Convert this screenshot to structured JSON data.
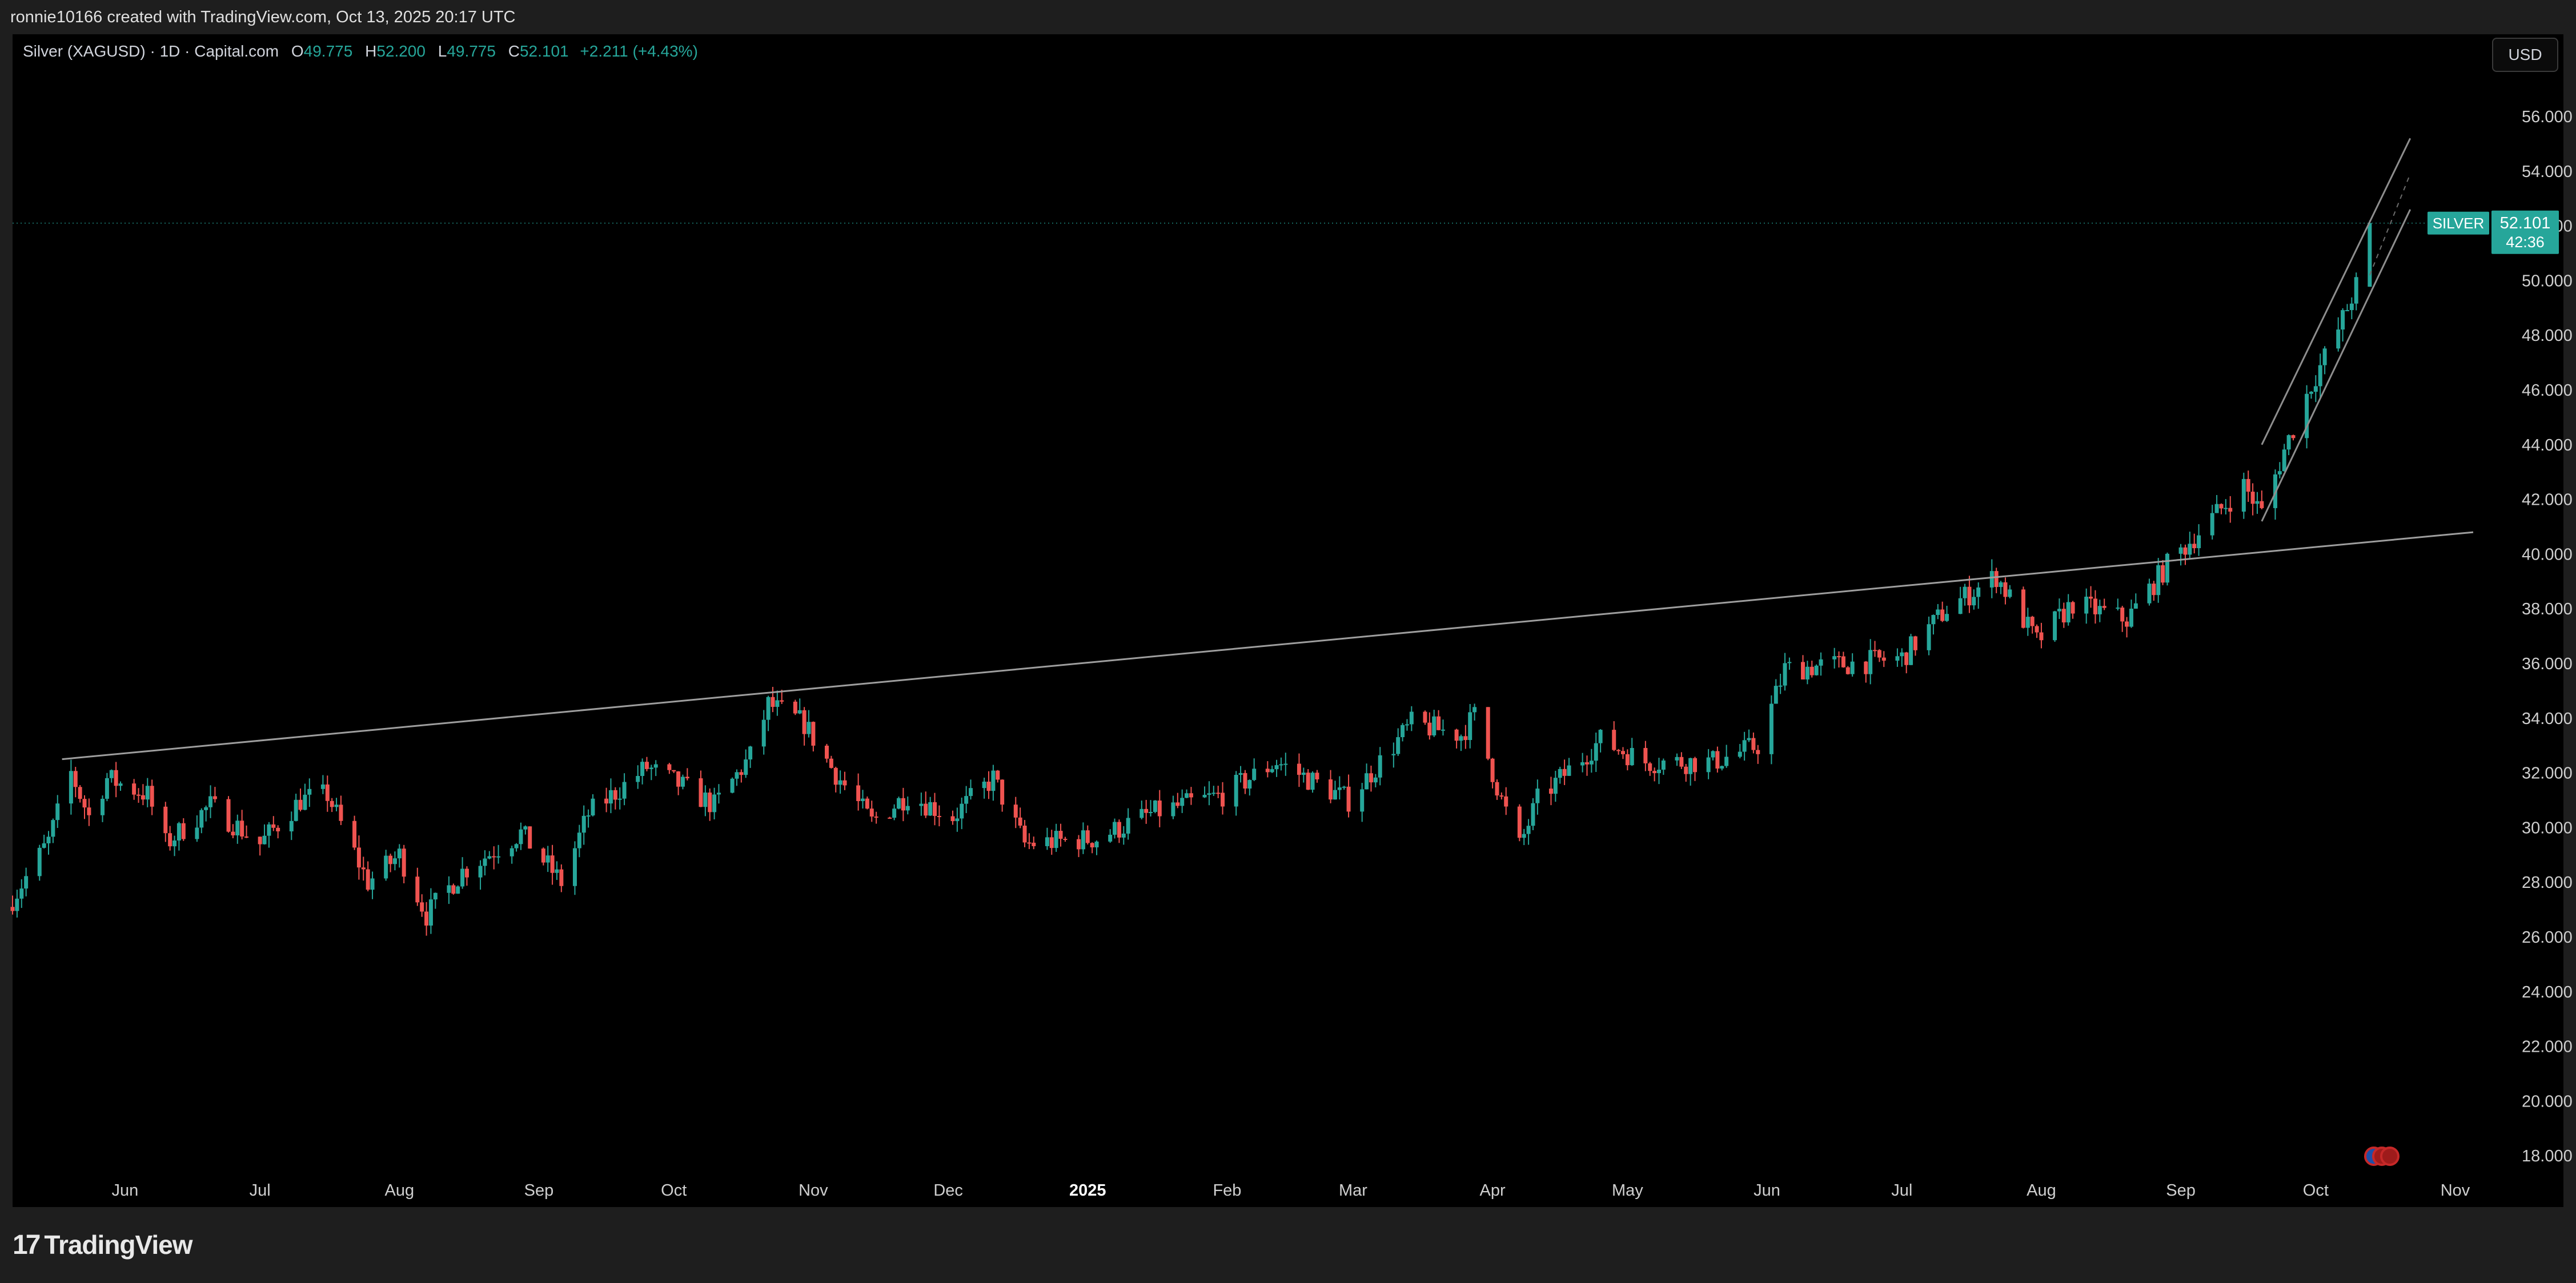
{
  "header": {
    "caption": "ronnie10166 created with TradingView.com, Oct 13, 2025 20:17 UTC"
  },
  "legend": {
    "symbol": "Silver (XAGUSD) · 1D · Capital.com",
    "open_label": "O",
    "open": "49.775",
    "high_label": "H",
    "high": "52.200",
    "low_label": "L",
    "low": "49.775",
    "close_label": "C",
    "close": "52.101",
    "change": "+2.211 (+4.43%)"
  },
  "currency_button": "USD",
  "price_tag": {
    "symbol": "SILVER",
    "price": "52.101",
    "countdown": "42:36"
  },
  "footer": {
    "brand": "TradingView"
  },
  "colors": {
    "up": "#26a69a",
    "down": "#ef5350",
    "background": "#000000",
    "trendline": "#9e9e9e"
  },
  "chart_data": {
    "type": "candlestick",
    "y_ticks": [
      "56.000",
      "54.000",
      "52.000",
      "50.000",
      "48.000",
      "46.000",
      "44.000",
      "42.000",
      "40.000",
      "38.000",
      "36.000",
      "34.000",
      "32.000",
      "30.000",
      "28.000",
      "26.000",
      "24.000",
      "22.000",
      "20.000",
      "18.000"
    ],
    "x_ticks": [
      {
        "label": "Jun",
        "date": "2024-06-01"
      },
      {
        "label": "Jul",
        "date": "2024-07-01"
      },
      {
        "label": "Aug",
        "date": "2024-08-01"
      },
      {
        "label": "Sep",
        "date": "2024-09-01"
      },
      {
        "label": "Oct",
        "date": "2024-10-01"
      },
      {
        "label": "Nov",
        "date": "2024-11-01"
      },
      {
        "label": "Dec",
        "date": "2024-12-01"
      },
      {
        "label": "2025",
        "date": "2025-01-01",
        "bold": true
      },
      {
        "label": "Feb",
        "date": "2025-02-01"
      },
      {
        "label": "Mar",
        "date": "2025-03-01"
      },
      {
        "label": "Apr",
        "date": "2025-04-01"
      },
      {
        "label": "May",
        "date": "2025-05-01"
      },
      {
        "label": "Jun",
        "date": "2025-06-01"
      },
      {
        "label": "Jul",
        "date": "2025-07-01"
      },
      {
        "label": "Aug",
        "date": "2025-08-01"
      },
      {
        "label": "Sep",
        "date": "2025-09-01"
      },
      {
        "label": "Oct",
        "date": "2025-10-01"
      },
      {
        "label": "Nov",
        "date": "2025-11-01"
      }
    ],
    "ylim": [
      17.2,
      57.0
    ],
    "xlim": [
      "2024-05-07",
      "2025-11-05"
    ],
    "price_path": [
      {
        "date": "2024-05-07",
        "close": 27.4
      },
      {
        "date": "2024-05-15",
        "close": 29.5
      },
      {
        "date": "2024-05-20",
        "close": 32.0
      },
      {
        "date": "2024-05-24",
        "close": 30.4
      },
      {
        "date": "2024-05-28",
        "close": 31.8
      },
      {
        "date": "2024-06-06",
        "close": 31.2
      },
      {
        "date": "2024-06-10",
        "close": 29.4
      },
      {
        "date": "2024-06-20",
        "close": 30.8
      },
      {
        "date": "2024-07-01",
        "close": 29.4
      },
      {
        "date": "2024-07-10",
        "close": 31.0
      },
      {
        "date": "2024-07-16",
        "close": 31.2
      },
      {
        "date": "2024-07-25",
        "close": 28.0
      },
      {
        "date": "2024-08-01",
        "close": 29.0
      },
      {
        "date": "2024-08-07",
        "close": 26.8
      },
      {
        "date": "2024-08-15",
        "close": 28.4
      },
      {
        "date": "2024-08-28",
        "close": 29.8
      },
      {
        "date": "2024-09-06",
        "close": 28.0
      },
      {
        "date": "2024-09-12",
        "close": 30.5
      },
      {
        "date": "2024-09-25",
        "close": 32.2
      },
      {
        "date": "2024-10-03",
        "close": 31.5
      },
      {
        "date": "2024-10-10",
        "close": 30.8
      },
      {
        "date": "2024-10-18",
        "close": 32.6
      },
      {
        "date": "2024-10-22",
        "close": 34.5
      },
      {
        "date": "2024-10-30",
        "close": 33.8
      },
      {
        "date": "2024-11-05",
        "close": 32.2
      },
      {
        "date": "2024-11-14",
        "close": 30.2
      },
      {
        "date": "2024-11-22",
        "close": 31.2
      },
      {
        "date": "2024-12-02",
        "close": 30.4
      },
      {
        "date": "2024-12-11",
        "close": 31.8
      },
      {
        "date": "2024-12-18",
        "close": 29.4
      },
      {
        "date": "2025-01-03",
        "close": 29.6
      },
      {
        "date": "2025-01-15",
        "close": 30.5
      },
      {
        "date": "2025-01-31",
        "close": 31.2
      },
      {
        "date": "2025-02-12",
        "close": 32.4
      },
      {
        "date": "2025-02-28",
        "close": 31.0
      },
      {
        "date": "2025-03-14",
        "close": 33.8
      },
      {
        "date": "2025-03-25",
        "close": 33.4
      },
      {
        "date": "2025-03-28",
        "close": 34.1
      },
      {
        "date": "2025-04-03",
        "close": 31.0
      },
      {
        "date": "2025-04-07",
        "close": 29.3
      },
      {
        "date": "2025-04-11",
        "close": 31.0
      },
      {
        "date": "2025-04-25",
        "close": 33.2
      },
      {
        "date": "2025-05-05",
        "close": 32.4
      },
      {
        "date": "2025-05-20",
        "close": 32.4
      },
      {
        "date": "2025-05-30",
        "close": 33.0
      },
      {
        "date": "2025-06-05",
        "close": 35.8
      },
      {
        "date": "2025-06-20",
        "close": 36.0
      },
      {
        "date": "2025-07-01",
        "close": 36.2
      },
      {
        "date": "2025-07-11",
        "close": 38.0
      },
      {
        "date": "2025-07-22",
        "close": 39.2
      },
      {
        "date": "2025-07-31",
        "close": 36.8
      },
      {
        "date": "2025-08-08",
        "close": 38.2
      },
      {
        "date": "2025-08-20",
        "close": 37.6
      },
      {
        "date": "2025-08-29",
        "close": 39.6
      },
      {
        "date": "2025-09-05",
        "close": 40.8
      },
      {
        "date": "2025-09-15",
        "close": 42.5
      },
      {
        "date": "2025-09-19",
        "close": 41.5
      },
      {
        "date": "2025-09-24",
        "close": 43.8
      },
      {
        "date": "2025-09-30",
        "close": 46.2
      },
      {
        "date": "2025-10-06",
        "close": 48.2
      },
      {
        "date": "2025-10-10",
        "close": 49.8
      },
      {
        "date": "2025-10-13",
        "close": 52.1
      }
    ],
    "last_candle": {
      "date": "2025-10-13",
      "open": 49.775,
      "high": 52.2,
      "low": 49.775,
      "close": 52.101
    },
    "drawings": {
      "trendline": [
        {
          "date": "2024-05-18",
          "price": 32.5
        },
        {
          "date": "2025-11-05",
          "price": 40.8
        }
      ],
      "channel_upper": [
        {
          "date": "2025-09-19",
          "price": 44.0
        },
        {
          "date": "2025-10-22",
          "price": 55.2
        }
      ],
      "channel_lower": [
        {
          "date": "2025-09-19",
          "price": 41.2
        },
        {
          "date": "2025-10-22",
          "price": 52.6
        }
      ],
      "channel_mid": [
        {
          "date": "2025-10-13",
          "price": 50.2
        },
        {
          "date": "2025-10-22",
          "price": 53.9
        }
      ]
    },
    "current_price": 52.101
  }
}
